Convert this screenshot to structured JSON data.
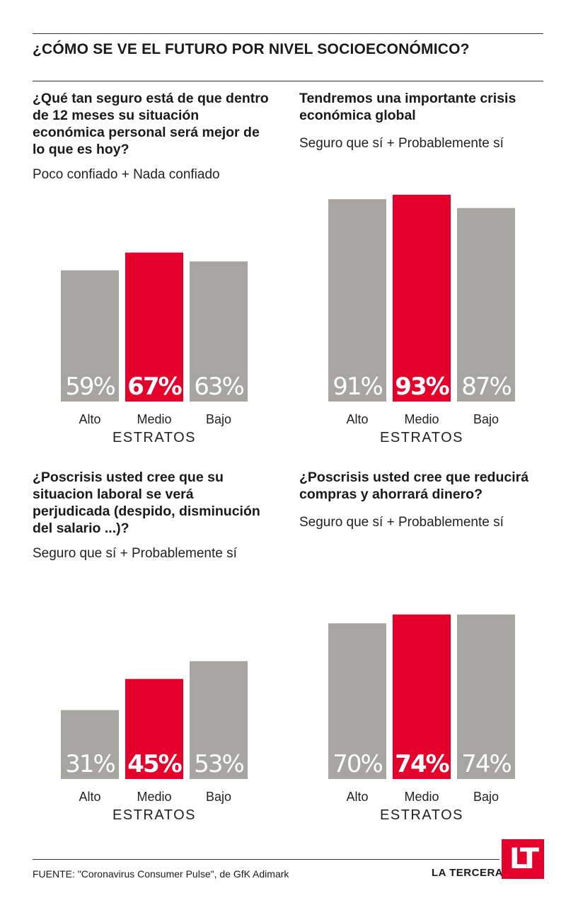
{
  "header": {
    "title": "¿CÓMO SE VE EL FUTURO POR NIVEL SOCIOECONÓMICO?"
  },
  "colors": {
    "highlight": "#e4002b",
    "bar": "#a6a5a1"
  },
  "chart_data": [
    {
      "type": "bar",
      "title": "¿Qué tan seguro está de que dentro de 12 meses su situación económica personal será mejor de lo que es hoy?",
      "subtitle": "Poco confiado + Nada confiado",
      "categories": [
        "Alto",
        "Medio",
        "Bajo"
      ],
      "values": [
        59,
        67,
        63
      ],
      "labels": [
        "59%",
        "67%",
        "63%"
      ],
      "highlight_index": 1,
      "xlabel": "ESTRATOS",
      "ylim": [
        0,
        100
      ]
    },
    {
      "type": "bar",
      "title": "Tendremos una importante crisis económica global",
      "subtitle": "Seguro que sí + Probablemente sí",
      "categories": [
        "Alto",
        "Medio",
        "Bajo"
      ],
      "values": [
        91,
        93,
        87
      ],
      "labels": [
        "91%",
        "93%",
        "87%"
      ],
      "highlight_index": 1,
      "xlabel": "ESTRATOS",
      "ylim": [
        0,
        100
      ]
    },
    {
      "type": "bar",
      "title": "¿Poscrisis usted cree que su situacion laboral se verá perjudicada (despido, disminución del salario ...)?",
      "subtitle": "Seguro que sí + Probablemente sí",
      "categories": [
        "Alto",
        "Medio",
        "Bajo"
      ],
      "values": [
        31,
        45,
        53
      ],
      "labels": [
        "31%",
        "45%",
        "53%"
      ],
      "highlight_index": 1,
      "xlabel": "ESTRATOS",
      "ylim": [
        0,
        100
      ]
    },
    {
      "type": "bar",
      "title": "¿Poscrisis usted cree que reducirá compras y ahorrará dinero?",
      "subtitle": "Seguro que sí + Probablemente sí",
      "categories": [
        "Alto",
        "Medio",
        "Bajo"
      ],
      "values": [
        70,
        74,
        74
      ],
      "labels": [
        "70%",
        "74%",
        "74%"
      ],
      "highlight_index": 1,
      "xlabel": "ESTRATOS",
      "ylim": [
        0,
        100
      ]
    }
  ],
  "footer": {
    "source": "FUENTE: \"Coronavirus Consumer Pulse\", de GfK Adimark",
    "brand": "LA TERCERA",
    "logo": "LT"
  }
}
